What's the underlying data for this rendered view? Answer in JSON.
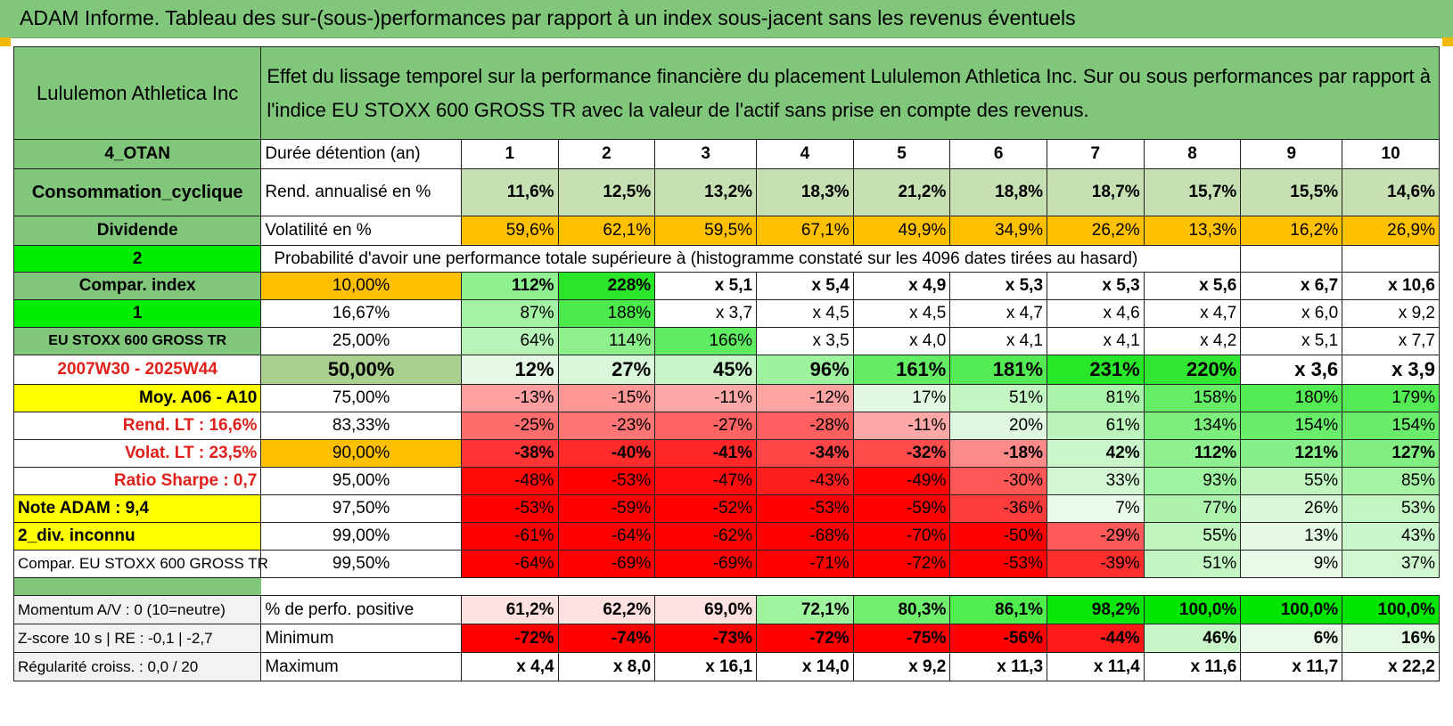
{
  "title": "ADAM Informe. Tableau des sur-(sous-)performances par rapport à un index sous-jacent sans les revenus éventuels",
  "header": {
    "asset": "Lululemon Athletica Inc",
    "description": "Effet du lissage temporel sur la performance financière du placement Lululemon Athletica Inc. Sur ou sous performances par rapport à l'indice EU STOXX 600 GROSS TR avec la valeur de l'actif sans prise en compte des revenus."
  },
  "colors": {
    "title_bg": "#80c77c",
    "label_green": "#80c77c",
    "orange": "#ffc000",
    "yellow": "#ffff00",
    "bright_green": "#00ee00",
    "red_text": "#e0201b"
  },
  "rows": [
    {
      "left": "4_OTAN",
      "label": "Durée détention (an)",
      "cells": [
        "1",
        "2",
        "3",
        "4",
        "5",
        "6",
        "7",
        "8",
        "9",
        "10"
      ]
    },
    {
      "left": "Consommation_cyclique",
      "label": "Rend. annualisé en %",
      "cells": [
        "11,6%",
        "12,5%",
        "13,2%",
        "18,3%",
        "21,2%",
        "18,8%",
        "18,7%",
        "15,7%",
        "15,5%",
        "14,6%"
      ]
    },
    {
      "left": "Dividende",
      "label": "Volatilité en %",
      "cells": [
        "59,6%",
        "62,1%",
        "59,5%",
        "67,1%",
        "49,9%",
        "34,9%",
        "26,2%",
        "13,3%",
        "16,2%",
        "26,9%"
      ]
    },
    {
      "left": "2",
      "label": "Probabilité d'avoir une performance totale supérieure à (histogramme constaté sur les 4096 dates tirées au hasard)",
      "cells": []
    },
    {
      "left": "Compar. index",
      "label": "10,00%",
      "cells": [
        "112%",
        "228%",
        "x 5,1",
        "x 5,4",
        "x 4,9",
        "x 5,3",
        "x 5,3",
        "x 5,6",
        "x 6,7",
        "x 10,6"
      ]
    },
    {
      "left": "1",
      "label": "16,67%",
      "cells": [
        "87%",
        "188%",
        "x 3,7",
        "x 4,5",
        "x 4,5",
        "x 4,7",
        "x 4,6",
        "x 4,7",
        "x 6,0",
        "x 9,2"
      ]
    },
    {
      "left": "EU STOXX 600 GROSS TR",
      "label": "25,00%",
      "cells": [
        "64%",
        "114%",
        "166%",
        "x 3,5",
        "x 4,0",
        "x 4,1",
        "x 4,1",
        "x 4,2",
        "x 5,1",
        "x 7,7"
      ]
    },
    {
      "left": "2007W30 - 2025W44",
      "label": "50,00%",
      "cells": [
        "12%",
        "27%",
        "45%",
        "96%",
        "161%",
        "181%",
        "231%",
        "220%",
        "x 3,6",
        "x 3,9"
      ]
    },
    {
      "left": "Moy. A06 - A10",
      "label": "75,00%",
      "cells": [
        "-13%",
        "-15%",
        "-11%",
        "-12%",
        "17%",
        "51%",
        "81%",
        "158%",
        "180%",
        "179%"
      ]
    },
    {
      "left": "Rend. LT :    16,6%",
      "label": "83,33%",
      "cells": [
        "-25%",
        "-23%",
        "-27%",
        "-28%",
        "-11%",
        "20%",
        "61%",
        "134%",
        "154%",
        "154%"
      ]
    },
    {
      "left": "Volat. LT :    23,5%",
      "label": "90,00%",
      "cells": [
        "-38%",
        "-40%",
        "-41%",
        "-34%",
        "-32%",
        "-18%",
        "42%",
        "112%",
        "121%",
        "127%"
      ]
    },
    {
      "left": "Ratio Sharpe :     0,7",
      "label": "95,00%",
      "cells": [
        "-48%",
        "-53%",
        "-47%",
        "-43%",
        "-49%",
        "-30%",
        "33%",
        "93%",
        "55%",
        "85%"
      ]
    },
    {
      "left": "Note ADAM : 9,4",
      "label": "97,50%",
      "cells": [
        "-53%",
        "-59%",
        "-52%",
        "-53%",
        "-59%",
        "-36%",
        "7%",
        "77%",
        "26%",
        "53%"
      ]
    },
    {
      "left": "2_div. inconnu",
      "label": "99,00%",
      "cells": [
        "-61%",
        "-64%",
        "-62%",
        "-68%",
        "-70%",
        "-50%",
        "-29%",
        "55%",
        "13%",
        "43%"
      ]
    },
    {
      "left": "Compar. EU STOXX 600 GROSS TR",
      "label": "99,50%",
      "cells": [
        "-64%",
        "-69%",
        "-69%",
        "-71%",
        "-72%",
        "-53%",
        "-39%",
        "51%",
        "9%",
        "37%"
      ]
    },
    {
      "left": "Momentum A/V : 0 (10=neutre)",
      "label": "% de perfo. positive",
      "cells": [
        "61,2%",
        "62,2%",
        "69,0%",
        "72,1%",
        "80,3%",
        "86,1%",
        "98,2%",
        "100,0%",
        "100,0%",
        "100,0%"
      ]
    },
    {
      "left": "Z-score 10 s | RE : -0,1 | -2,7",
      "label": "Minimum",
      "cells": [
        "-72%",
        "-74%",
        "-73%",
        "-72%",
        "-75%",
        "-56%",
        "-44%",
        "46%",
        "6%",
        "16%"
      ]
    },
    {
      "left": "Régularité croiss. : 0,0 / 20",
      "label": "Maximum",
      "cells": [
        "x 4,4",
        "x 8,0",
        "x 16,1",
        "x 14,0",
        "x 9,2",
        "x 11,3",
        "x 11,4",
        "x 11,6",
        "x 11,7",
        "x 22,2"
      ]
    }
  ]
}
